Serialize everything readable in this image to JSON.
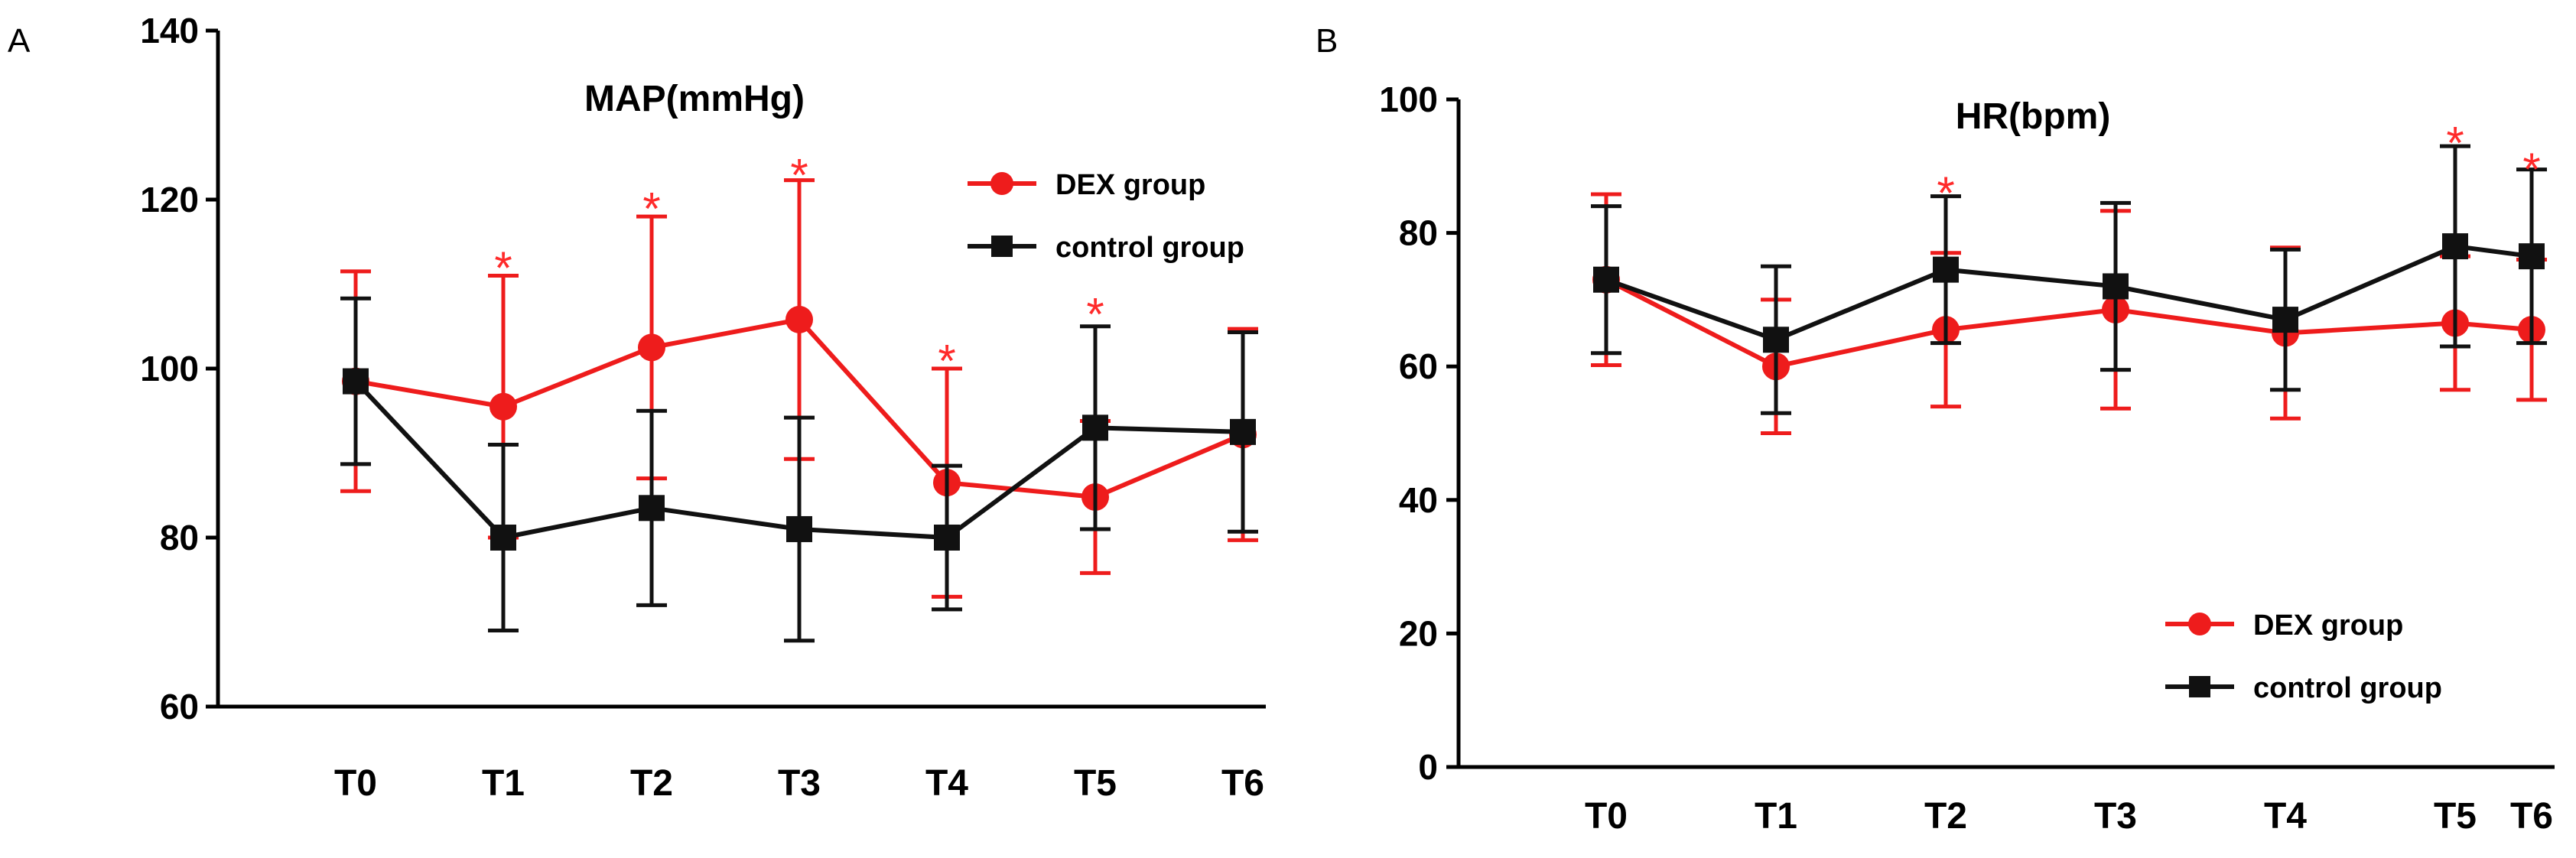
{
  "colors": {
    "dex": "#ee1c1c",
    "control": "#111111",
    "star": "#ff2a2a",
    "axis": "#000000"
  },
  "chart_data": [
    {
      "panel": "A",
      "type": "line",
      "title": "MAP(mmHg)",
      "categories": [
        "T0",
        "T1",
        "T2",
        "T3",
        "T4",
        "T5",
        "T6"
      ],
      "ylim": [
        60,
        140
      ],
      "yticks": [
        "60",
        "80",
        "100",
        "120",
        "140"
      ],
      "legend_position": "top-right",
      "series": [
        {
          "name": "DEX group",
          "marker": "circle",
          "color": "#ee1c1c",
          "values": [
            98.5,
            95.5,
            102.5,
            105.8,
            86.5,
            84.8,
            92.2
          ],
          "errors": [
            13,
            15.5,
            15.5,
            16.5,
            13.5,
            9,
            12.5
          ]
        },
        {
          "name": "control group",
          "marker": "square",
          "color": "#111111",
          "values": [
            98.5,
            80.0,
            83.5,
            81.0,
            80.0,
            93.0,
            92.5
          ],
          "errors": [
            9.8,
            11,
            11.5,
            13.2,
            8.5,
            12,
            11.8
          ]
        }
      ],
      "significance": [
        {
          "label": "*",
          "index": 1,
          "y": 113.5
        },
        {
          "label": "*",
          "index": 2,
          "y": 120.5
        },
        {
          "label": "*",
          "index": 3,
          "y": 124.5
        },
        {
          "label": "*",
          "index": 4,
          "y": 102.5
        },
        {
          "label": "*",
          "index": 5,
          "y": 108
        }
      ]
    },
    {
      "panel": "B",
      "type": "line",
      "title": "HR(bpm)",
      "categories": [
        "T0",
        "T1",
        "T2",
        "T3",
        "T4",
        "T5",
        "T6"
      ],
      "ylim": [
        0,
        100
      ],
      "yticks": [
        "0",
        "20",
        "40",
        "60",
        "80",
        "100"
      ],
      "legend_position": "bottom-right",
      "series": [
        {
          "name": "DEX group",
          "marker": "circle",
          "color": "#ee1c1c",
          "values": [
            73.0,
            60.0,
            65.5,
            68.5,
            65.0,
            66.5,
            65.5
          ],
          "errors": [
            12.8,
            10,
            11.5,
            14.8,
            12.8,
            10,
            10.5
          ]
        },
        {
          "name": "control group",
          "marker": "square",
          "color": "#111111",
          "values": [
            73.0,
            64.0,
            74.5,
            72.0,
            67.0,
            78.0,
            76.5
          ],
          "errors": [
            11,
            11,
            11,
            12.5,
            10.5,
            15,
            13
          ]
        }
      ],
      "significance": [
        {
          "label": "*",
          "index": 2,
          "y": 88
        },
        {
          "label": "*",
          "index": 5,
          "y": 95.5
        },
        {
          "label": "*",
          "index": 6,
          "y": 91.5
        }
      ]
    }
  ]
}
